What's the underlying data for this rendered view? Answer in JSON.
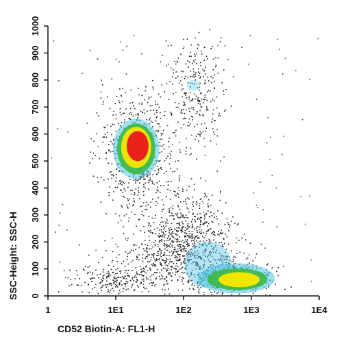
{
  "chart_data": {
    "type": "scatter",
    "subtype": "flow-cytometry density dot plot",
    "title": "",
    "xlabel": "CD52 Biotin-A: FL1-H",
    "ylabel": "SSC-Height: SSC-H",
    "x_scale": "log",
    "xlim": [
      1,
      10000
    ],
    "x_ticks": [
      {
        "value": 1,
        "label": "1"
      },
      {
        "value": 10,
        "label": "1E1"
      },
      {
        "value": 100,
        "label": "1E2"
      },
      {
        "value": 1000,
        "label": "1E3"
      },
      {
        "value": 10000,
        "label": "1E4"
      }
    ],
    "y_scale": "linear",
    "ylim": [
      0,
      1000
    ],
    "y_ticks": [
      {
        "value": 0,
        "label": "0"
      },
      {
        "value": 100,
        "label": "100"
      },
      {
        "value": 200,
        "label": "200"
      },
      {
        "value": 300,
        "label": "300"
      },
      {
        "value": 400,
        "label": "400"
      },
      {
        "value": 500,
        "label": "500"
      },
      {
        "value": 600,
        "label": "600"
      },
      {
        "value": 700,
        "label": "700"
      },
      {
        "value": 800,
        "label": "800"
      },
      {
        "value": 900,
        "label": "900"
      },
      {
        "value": 1000,
        "label": "1000"
      }
    ],
    "grid": false,
    "legend": "none",
    "density_colors": {
      "low": "#1a1a1a",
      "low_mid": "#55c8e8",
      "mid": "#3cb846",
      "mid_high": "#f2e600",
      "high": "#e8231c"
    },
    "populations": [
      {
        "name": "CD52-mid high-SSC cluster",
        "center": {
          "x": 20,
          "y": 540
        },
        "peak_density": "high"
      },
      {
        "name": "high-SSC diffuse cluster",
        "center": {
          "x": 120,
          "y": 760
        },
        "peak_density": "low_mid"
      },
      {
        "name": "intermediate-SSC scatter",
        "center": {
          "x": 100,
          "y": 230
        },
        "peak_density": "low"
      },
      {
        "name": "CD52-high low-SSC cluster",
        "center": {
          "x": 650,
          "y": 60
        },
        "peak_density": "mid_high"
      },
      {
        "name": "CD52-low low-SSC cluster",
        "center": {
          "x": 8,
          "y": 65
        },
        "peak_density": "low"
      }
    ]
  }
}
